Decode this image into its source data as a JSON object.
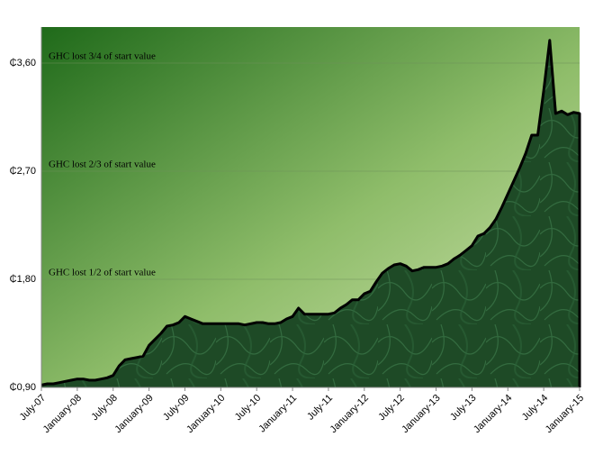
{
  "chart_data": {
    "type": "area",
    "annotations": [
      "GHC lost 1/2 of start value",
      "GHC lost 2/3 of start value",
      "GHC lost 3/4 of start value"
    ],
    "categories": [
      "July-07",
      null,
      null,
      null,
      null,
      null,
      "January-08",
      null,
      null,
      null,
      null,
      null,
      "July-08",
      null,
      null,
      null,
      null,
      null,
      "January-09",
      null,
      null,
      null,
      null,
      null,
      "July-09",
      null,
      null,
      null,
      null,
      null,
      "January-10",
      null,
      null,
      null,
      null,
      null,
      "July-10",
      null,
      null,
      null,
      null,
      null,
      "January-11",
      null,
      null,
      null,
      null,
      null,
      "July-11",
      null,
      null,
      null,
      null,
      null,
      "January-12",
      null,
      null,
      null,
      null,
      null,
      "July-12",
      null,
      null,
      null,
      null,
      null,
      "January-13",
      null,
      null,
      null,
      null,
      null,
      "July-13",
      null,
      null,
      null,
      null,
      null,
      "January-14",
      null,
      null,
      null,
      null,
      null,
      "July-14",
      null,
      null,
      null,
      null,
      null,
      "January-15"
    ],
    "values": [
      0.92,
      0.93,
      0.93,
      0.94,
      0.95,
      0.96,
      0.97,
      0.97,
      0.96,
      0.96,
      0.97,
      0.98,
      1.0,
      1.08,
      1.13,
      1.14,
      1.15,
      1.16,
      1.25,
      1.3,
      1.35,
      1.41,
      1.42,
      1.44,
      1.49,
      1.47,
      1.45,
      1.43,
      1.43,
      1.43,
      1.43,
      1.43,
      1.43,
      1.43,
      1.42,
      1.43,
      1.44,
      1.44,
      1.43,
      1.43,
      1.44,
      1.47,
      1.49,
      1.56,
      1.51,
      1.51,
      1.51,
      1.51,
      1.51,
      1.52,
      1.56,
      1.59,
      1.63,
      1.63,
      1.68,
      1.7,
      1.78,
      1.85,
      1.89,
      1.92,
      1.93,
      1.91,
      1.87,
      1.88,
      1.9,
      1.9,
      1.9,
      1.91,
      1.93,
      1.97,
      2.0,
      2.04,
      2.08,
      2.16,
      2.18,
      2.23,
      2.3,
      2.4,
      2.51,
      2.62,
      2.73,
      2.85,
      3.0,
      3.0,
      3.37,
      3.79,
      3.18,
      3.2,
      3.17,
      3.19,
      3.18
    ],
    "color": "#1e4a26",
    "ylim": [
      0.9,
      3.9
    ],
    "yticks": [
      {
        "value": 0.9,
        "label": "₵0,90"
      },
      {
        "value": 1.8,
        "label": "₵1,80"
      },
      {
        "value": 2.7,
        "label": "₵2,70"
      },
      {
        "value": 3.6,
        "label": "₵3,60"
      }
    ],
    "grid": true
  }
}
